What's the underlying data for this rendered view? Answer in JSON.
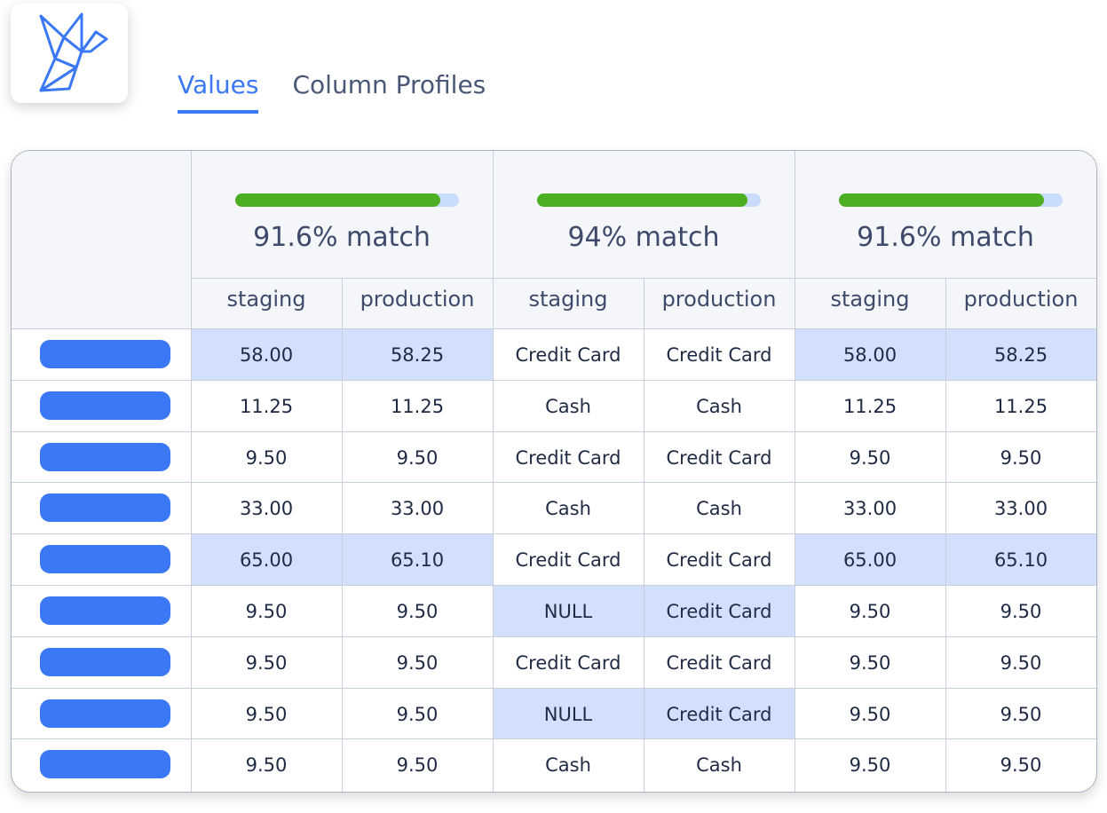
{
  "tabs": [
    {
      "label": "Values",
      "active": true
    },
    {
      "label": "Column Profiles",
      "active": false
    }
  ],
  "colors": {
    "accent": "#3b78f5",
    "match_bar": "#4caf22",
    "bar_track": "#c9dcfb",
    "diff_highlight": "#d2e0fd"
  },
  "column_groups": [
    {
      "match_label": "91.6% match",
      "match_fraction": 0.916,
      "subheaders": [
        "staging",
        "production"
      ]
    },
    {
      "match_label": "94% match",
      "match_fraction": 0.94,
      "subheaders": [
        "staging",
        "production"
      ]
    },
    {
      "match_label": "91.6% match",
      "match_fraction": 0.916,
      "subheaders": [
        "staging",
        "production"
      ]
    }
  ],
  "rows": [
    {
      "cells": [
        "58.00",
        "58.25",
        "Credit Card",
        "Credit Card",
        "58.00",
        "58.25"
      ],
      "diff": [
        true,
        false,
        true
      ]
    },
    {
      "cells": [
        "11.25",
        "11.25",
        "Cash",
        "Cash",
        "11.25",
        "11.25"
      ],
      "diff": [
        false,
        false,
        false
      ]
    },
    {
      "cells": [
        "9.50",
        "9.50",
        "Credit Card",
        "Credit Card",
        "9.50",
        "9.50"
      ],
      "diff": [
        false,
        false,
        false
      ]
    },
    {
      "cells": [
        "33.00",
        "33.00",
        "Cash",
        "Cash",
        "33.00",
        "33.00"
      ],
      "diff": [
        false,
        false,
        false
      ]
    },
    {
      "cells": [
        "65.00",
        "65.10",
        "Credit Card",
        "Credit Card",
        "65.00",
        "65.10"
      ],
      "diff": [
        true,
        false,
        true
      ]
    },
    {
      "cells": [
        "9.50",
        "9.50",
        "NULL",
        "Credit Card",
        "9.50",
        "9.50"
      ],
      "diff": [
        false,
        true,
        false
      ]
    },
    {
      "cells": [
        "9.50",
        "9.50",
        "Credit Card",
        "Credit Card",
        "9.50",
        "9.50"
      ],
      "diff": [
        false,
        false,
        false
      ]
    },
    {
      "cells": [
        "9.50",
        "9.50",
        "NULL",
        "Credit Card",
        "9.50",
        "9.50"
      ],
      "diff": [
        false,
        true,
        false
      ]
    },
    {
      "cells": [
        "9.50",
        "9.50",
        "Cash",
        "Cash",
        "9.50",
        "9.50"
      ],
      "diff": [
        false,
        false,
        false
      ]
    }
  ]
}
